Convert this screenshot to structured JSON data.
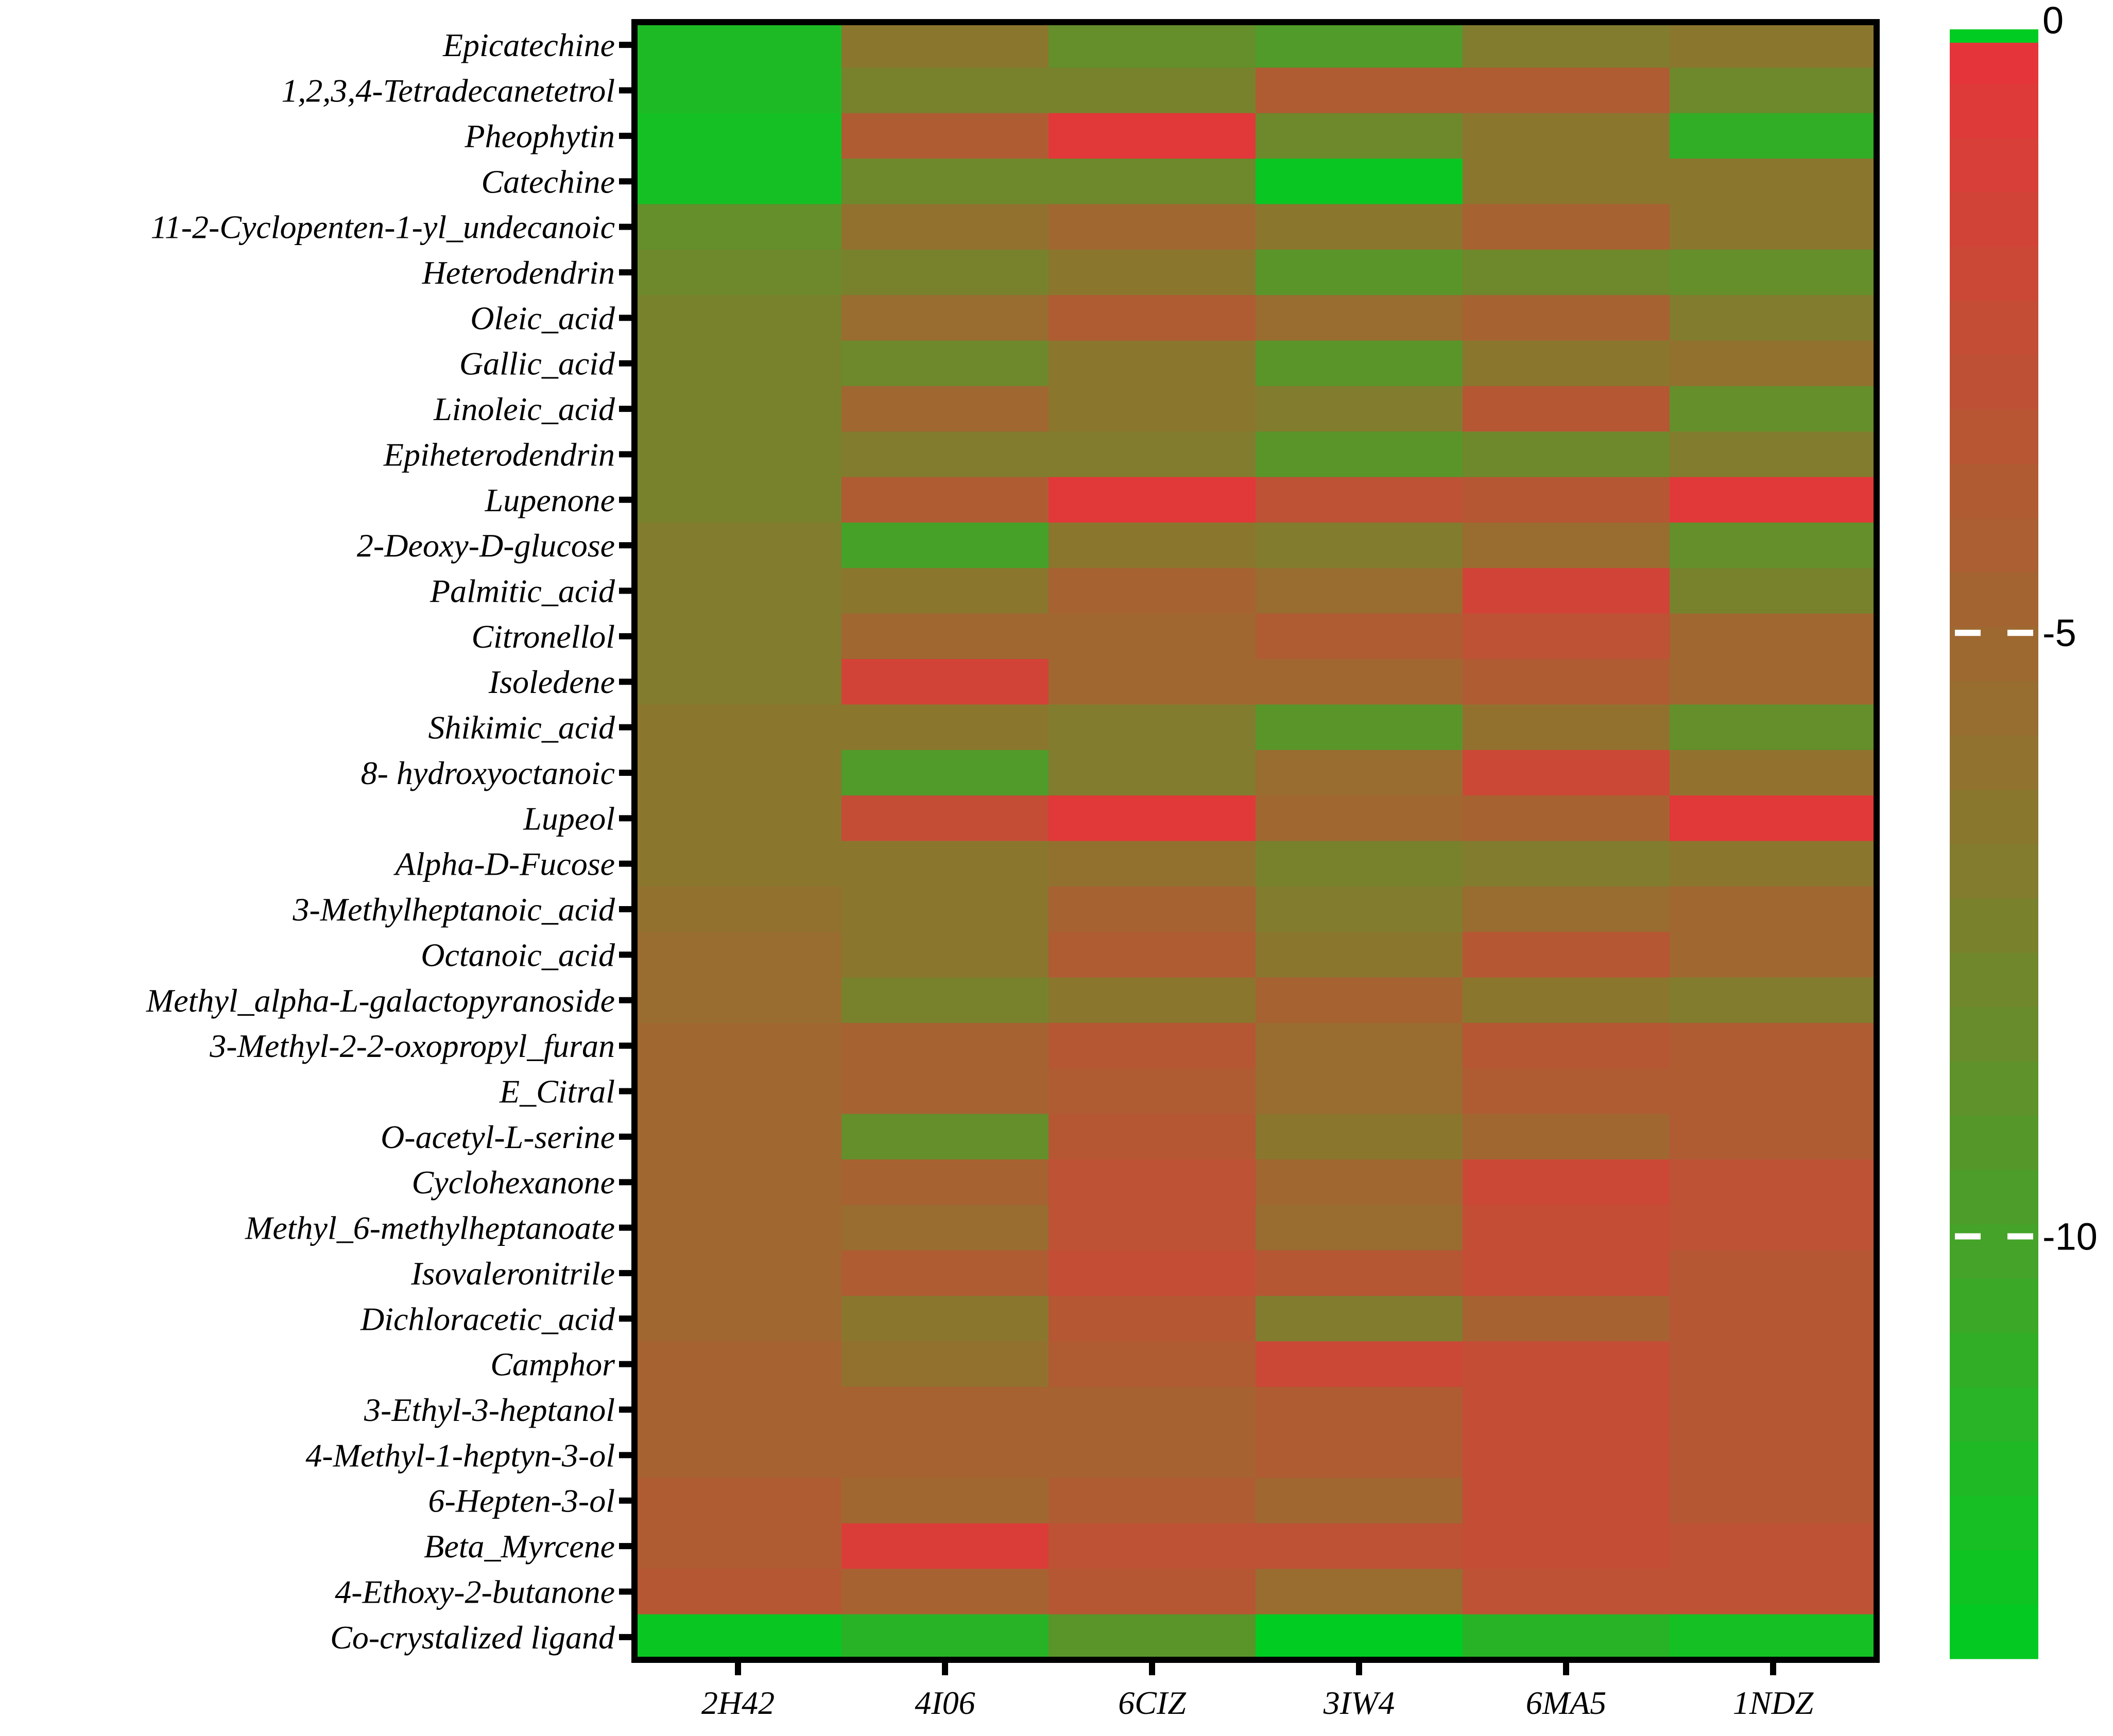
{
  "chart_data": {
    "type": "heatmap",
    "title": "",
    "xlabel": "",
    "ylabel": "",
    "columns": [
      "2H42",
      "4I06",
      "6CIZ",
      "3IW4",
      "6MA5",
      "1NDZ"
    ],
    "rows": [
      "Epicatechine",
      "1,2,3,4-Tetradecanetetrol",
      "Pheophytin",
      "Catechine",
      "11-2-Cyclopenten-1-yl_undecanoic",
      "Heterodendrin",
      "Oleic_acid",
      "Gallic_acid",
      "Linoleic_acid",
      "Epiheterodendrin",
      "Lupenone",
      "2-Deoxy-D-glucose",
      "Palmitic_acid",
      "Citronellol",
      "Isoledene",
      "Shikimic_acid",
      "8- hydroxyoctanoic",
      "Lupeol",
      "Alpha-D-Fucose",
      "3-Methylheptanoic_acid",
      "Octanoic_acid",
      "Methyl_alpha-L-galactopyranoside",
      "3-Methyl-2-2-oxopropyl_furan",
      "E_Citral",
      "O-acetyl-L-serine",
      "Cyclohexanone",
      "Methyl_6-methylheptanoate",
      "Isovaleronitrile",
      "Dichloracetic_acid",
      "Camphor",
      "3-Ethyl-3-heptanol",
      "4-Methyl-1-heptyn-3-ol",
      "6-Hepten-3-ol",
      "Beta_Myrcene",
      "4-Ethoxy-2-butanone",
      "Co-crystalized ligand"
    ],
    "values": [
      [
        -12.0,
        -6.5,
        -8.5,
        -9.5,
        -7.0,
        -6.5
      ],
      [
        -12.0,
        -7.5,
        -7.5,
        -4.0,
        -4.0,
        -8.0
      ],
      [
        -12.5,
        -4.0,
        -0.5,
        -8.0,
        -6.5,
        -11.0
      ],
      [
        -12.5,
        -8.0,
        -8.0,
        -13.0,
        -6.5,
        -6.5
      ],
      [
        -8.5,
        -6.0,
        -5.0,
        -6.5,
        -4.5,
        -6.5
      ],
      [
        -8.0,
        -7.5,
        -6.5,
        -9.0,
        -8.0,
        -8.5
      ],
      [
        -7.5,
        -5.5,
        -4.0,
        -5.5,
        -4.5,
        -7.0
      ],
      [
        -7.5,
        -8.0,
        -6.5,
        -9.0,
        -6.5,
        -6.0
      ],
      [
        -7.5,
        -5.0,
        -6.5,
        -7.0,
        -3.5,
        -8.5
      ],
      [
        -7.5,
        -7.0,
        -7.0,
        -9.0,
        -8.0,
        -7.0
      ],
      [
        -7.5,
        -4.0,
        -0.5,
        -3.0,
        -3.5,
        -0.5
      ],
      [
        -7.0,
        -10.0,
        -6.5,
        -7.0,
        -5.5,
        -8.5
      ],
      [
        -7.0,
        -6.5,
        -4.5,
        -5.5,
        -1.5,
        -7.5
      ],
      [
        -7.0,
        -5.0,
        -5.0,
        -4.0,
        -3.0,
        -5.0
      ],
      [
        -7.0,
        -1.5,
        -5.0,
        -5.0,
        -4.0,
        -5.0
      ],
      [
        -6.5,
        -6.5,
        -7.0,
        -9.0,
        -6.0,
        -8.5
      ],
      [
        -6.5,
        -9.5,
        -7.0,
        -5.5,
        -2.0,
        -6.0
      ],
      [
        -6.5,
        -2.5,
        -0.5,
        -5.0,
        -4.5,
        -0.5
      ],
      [
        -6.5,
        -6.5,
        -6.0,
        -7.5,
        -7.0,
        -6.5
      ],
      [
        -6.0,
        -6.5,
        -4.5,
        -7.0,
        -5.5,
        -5.0
      ],
      [
        -5.5,
        -6.5,
        -4.0,
        -6.5,
        -3.5,
        -5.0
      ],
      [
        -5.5,
        -7.5,
        -6.5,
        -4.5,
        -6.5,
        -7.0
      ],
      [
        -5.0,
        -4.5,
        -3.5,
        -5.5,
        -3.5,
        -4.0
      ],
      [
        -5.0,
        -4.5,
        -4.0,
        -5.5,
        -4.0,
        -4.0
      ],
      [
        -5.0,
        -8.5,
        -3.5,
        -6.5,
        -5.0,
        -4.0
      ],
      [
        -5.0,
        -4.5,
        -3.0,
        -5.0,
        -2.0,
        -3.0
      ],
      [
        -5.0,
        -5.5,
        -3.0,
        -5.5,
        -2.5,
        -3.0
      ],
      [
        -5.0,
        -4.0,
        -2.5,
        -3.5,
        -2.5,
        -3.5
      ],
      [
        -5.0,
        -6.5,
        -3.5,
        -7.0,
        -4.5,
        -3.5
      ],
      [
        -4.5,
        -6.0,
        -4.0,
        -2.0,
        -2.5,
        -3.5
      ],
      [
        -4.5,
        -4.5,
        -4.5,
        -4.0,
        -2.5,
        -3.5
      ],
      [
        -4.5,
        -4.5,
        -4.5,
        -4.0,
        -2.5,
        -3.5
      ],
      [
        -4.0,
        -5.0,
        -4.0,
        -5.0,
        -2.5,
        -3.5
      ],
      [
        -4.0,
        -1.0,
        -3.0,
        -3.0,
        -2.5,
        -3.0
      ],
      [
        -3.5,
        -4.5,
        -3.5,
        -5.5,
        -3.0,
        -3.0
      ],
      [
        -13.0,
        -11.5,
        -9.0,
        -14.0,
        -11.5,
        -12.5
      ]
    ],
    "colorbar": {
      "range": [
        -13.5,
        0
      ],
      "ticks": [
        0,
        -5,
        -10
      ],
      "tick_labels": [
        "0",
        "-5",
        "-10"
      ],
      "colors": {
        "max": "#e8333a",
        "mid": "#87792e",
        "min": "#00cc22",
        "top_cap": "#00cc22"
      }
    },
    "grid": false,
    "legend": "right"
  }
}
